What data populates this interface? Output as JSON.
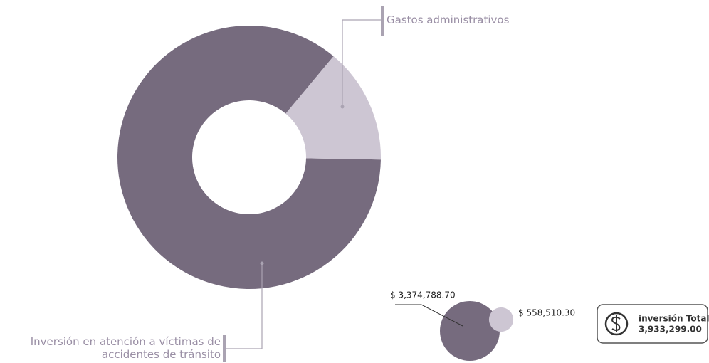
{
  "chart_data": {
    "type": "pie",
    "categories": [
      "Inversión en atención a víctimas de accidentes de tránsito",
      "Gastos administrativos"
    ],
    "values": [
      3374788.7,
      558510.3
    ],
    "value_labels": [
      "$ 3,374,788.70",
      "$ 558,510.30"
    ],
    "colors": [
      "#766b7e",
      "#cdc6d3"
    ],
    "total_label": "inversión Total",
    "total_value_label": "3,933,299.00"
  }
}
